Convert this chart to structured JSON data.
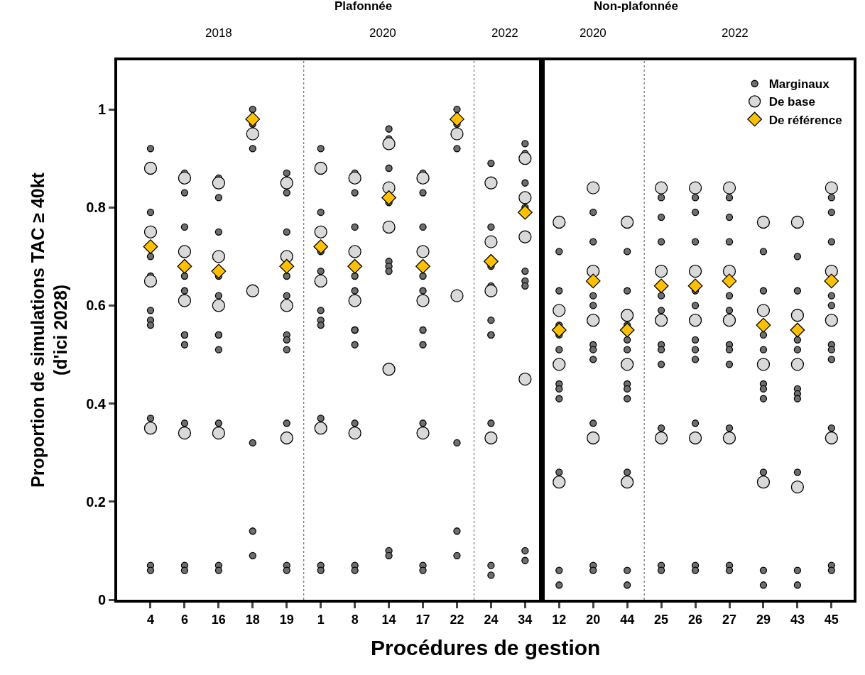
{
  "chart_data": {
    "type": "scatter",
    "xlabel": "Procédures de gestion",
    "ylabel": "Proportion de simulations TAC ≥ 40kt\n(d'ici 2028)",
    "categories": [
      "4",
      "6",
      "16",
      "18",
      "19",
      "1",
      "8",
      "14",
      "17",
      "22",
      "24",
      "34",
      "12",
      "20",
      "44",
      "25",
      "26",
      "27",
      "29",
      "43",
      "45"
    ],
    "ylim": [
      0,
      1.1
    ],
    "yticks": [
      0,
      0.2,
      0.4,
      0.6,
      0.8,
      1
    ],
    "grid": false,
    "legend": "top right",
    "annotations": [
      "Plafonnée",
      "Non-plafonnée",
      "2018",
      "2020",
      "2022",
      "2020",
      "2022"
    ],
    "series": [
      {
        "name": "Marginaux",
        "color": "#6e6e6e",
        "marker": "circle",
        "x": [
          "4",
          "4",
          "4",
          "4",
          "4",
          "4",
          "4",
          "4",
          "4",
          "4",
          "6",
          "6",
          "6",
          "6",
          "6",
          "6",
          "6",
          "6",
          "6",
          "6",
          "6",
          "16",
          "16",
          "16",
          "16",
          "16",
          "16",
          "16",
          "16",
          "16",
          "16",
          "16",
          "18",
          "18",
          "18",
          "18",
          "18",
          "18",
          "19",
          "19",
          "19",
          "19",
          "19",
          "19",
          "19",
          "19",
          "19",
          "19",
          "19",
          "1",
          "1",
          "1",
          "1",
          "1",
          "1",
          "1",
          "1",
          "1",
          "1",
          "8",
          "8",
          "8",
          "8",
          "8",
          "8",
          "8",
          "8",
          "8",
          "8",
          "8",
          "14",
          "14",
          "14",
          "14",
          "14",
          "14",
          "14",
          "14",
          "14",
          "17",
          "17",
          "17",
          "17",
          "17",
          "17",
          "17",
          "17",
          "17",
          "17",
          "22",
          "22",
          "22",
          "22",
          "22",
          "22",
          "24",
          "24",
          "24",
          "24",
          "24",
          "24",
          "24",
          "24",
          "24",
          "24",
          "34",
          "34",
          "34",
          "34",
          "34",
          "34",
          "34",
          "34",
          "34",
          "12",
          "12",
          "12",
          "12",
          "12",
          "12",
          "12",
          "12",
          "12",
          "12",
          "12",
          "20",
          "20",
          "20",
          "20",
          "20",
          "20",
          "20",
          "20",
          "20",
          "20",
          "44",
          "44",
          "44",
          "44",
          "44",
          "44",
          "44",
          "44",
          "44",
          "44",
          "44",
          "25",
          "25",
          "25",
          "25",
          "25",
          "25",
          "25",
          "25",
          "25",
          "25",
          "25",
          "26",
          "26",
          "26",
          "26",
          "26",
          "26",
          "26",
          "26",
          "26",
          "26",
          "26",
          "27",
          "27",
          "27",
          "27",
          "27",
          "27",
          "27",
          "27",
          "27",
          "27",
          "27",
          "29",
          "29",
          "29",
          "29",
          "29",
          "29",
          "29",
          "29",
          "29",
          "29",
          "43",
          "43",
          "43",
          "43",
          "43",
          "43",
          "43",
          "43",
          "43",
          "43",
          "45",
          "45",
          "45",
          "45",
          "45",
          "45",
          "45",
          "45",
          "45",
          "45",
          "45"
        ],
        "values": [
          0.92,
          0.79,
          0.7,
          0.66,
          0.59,
          0.57,
          0.56,
          0.37,
          0.07,
          0.06,
          0.87,
          0.83,
          0.76,
          0.66,
          0.63,
          0.54,
          0.54,
          0.52,
          0.36,
          0.07,
          0.06,
          0.86,
          0.82,
          0.75,
          0.66,
          0.62,
          0.54,
          0.54,
          0.51,
          0.36,
          0.07,
          0.06,
          1.0,
          0.97,
          0.92,
          0.32,
          0.14,
          0.09,
          0.87,
          0.83,
          0.75,
          0.66,
          0.62,
          0.54,
          0.53,
          0.51,
          0.36,
          0.07,
          0.06,
          0.92,
          0.79,
          0.71,
          0.67,
          0.59,
          0.57,
          0.56,
          0.37,
          0.07,
          0.06,
          0.87,
          0.83,
          0.76,
          0.66,
          0.63,
          0.55,
          0.55,
          0.52,
          0.36,
          0.07,
          0.06,
          0.96,
          0.94,
          0.88,
          0.81,
          0.69,
          0.68,
          0.67,
          0.1,
          0.09,
          0.87,
          0.83,
          0.76,
          0.66,
          0.63,
          0.55,
          0.52,
          0.36,
          0.07,
          0.06,
          1.0,
          0.97,
          0.92,
          0.32,
          0.14,
          0.09,
          0.89,
          0.76,
          0.68,
          0.64,
          0.57,
          0.54,
          0.54,
          0.36,
          0.07,
          0.05,
          0.93,
          0.91,
          0.85,
          0.8,
          0.67,
          0.65,
          0.64,
          0.1,
          0.08,
          0.71,
          0.63,
          0.56,
          0.54,
          0.51,
          0.44,
          0.43,
          0.41,
          0.26,
          0.06,
          0.03,
          0.79,
          0.73,
          0.62,
          0.6,
          0.52,
          0.51,
          0.49,
          0.36,
          0.07,
          0.06,
          0.71,
          0.63,
          0.56,
          0.53,
          0.51,
          0.44,
          0.43,
          0.41,
          0.26,
          0.06,
          0.03,
          0.82,
          0.78,
          0.73,
          0.62,
          0.59,
          0.52,
          0.51,
          0.48,
          0.35,
          0.07,
          0.06,
          0.82,
          0.79,
          0.73,
          0.63,
          0.6,
          0.53,
          0.51,
          0.49,
          0.36,
          0.07,
          0.06,
          0.82,
          0.78,
          0.73,
          0.62,
          0.59,
          0.52,
          0.51,
          0.48,
          0.35,
          0.07,
          0.06,
          0.71,
          0.63,
          0.54,
          0.51,
          0.44,
          0.43,
          0.41,
          0.26,
          0.06,
          0.03,
          0.7,
          0.63,
          0.53,
          0.51,
          0.43,
          0.42,
          0.41,
          0.26,
          0.06,
          0.03,
          0.82,
          0.79,
          0.73,
          0.62,
          0.6,
          0.52,
          0.51,
          0.49,
          0.35,
          0.07,
          0.06
        ]
      },
      {
        "name": "De base",
        "color": "#d9d9d9",
        "marker": "circle",
        "x": [
          "4",
          "4",
          "4",
          "4",
          "6",
          "6",
          "6",
          "6",
          "16",
          "16",
          "16",
          "16",
          "18",
          "18",
          "19",
          "19",
          "19",
          "19",
          "1",
          "1",
          "1",
          "1",
          "8",
          "8",
          "8",
          "8",
          "14",
          "14",
          "14",
          "14",
          "17",
          "17",
          "17",
          "17",
          "22",
          "22",
          "24",
          "24",
          "24",
          "24",
          "34",
          "34",
          "34",
          "34",
          "12",
          "12",
          "12",
          "12",
          "20",
          "20",
          "20",
          "20",
          "44",
          "44",
          "44",
          "44",
          "25",
          "25",
          "25",
          "25",
          "26",
          "26",
          "26",
          "26",
          "27",
          "27",
          "27",
          "27",
          "29",
          "29",
          "29",
          "29",
          "43",
          "43",
          "43",
          "43",
          "45",
          "45",
          "45",
          "45"
        ],
        "values": [
          0.88,
          0.75,
          0.65,
          0.35,
          0.86,
          0.71,
          0.61,
          0.34,
          0.85,
          0.7,
          0.6,
          0.34,
          0.95,
          0.63,
          0.85,
          0.7,
          0.6,
          0.33,
          0.88,
          0.75,
          0.65,
          0.35,
          0.86,
          0.71,
          0.61,
          0.34,
          0.93,
          0.84,
          0.76,
          0.47,
          0.86,
          0.71,
          0.61,
          0.34,
          0.95,
          0.62,
          0.85,
          0.73,
          0.63,
          0.33,
          0.9,
          0.82,
          0.74,
          0.45,
          0.77,
          0.59,
          0.48,
          0.24,
          0.84,
          0.67,
          0.57,
          0.33,
          0.77,
          0.58,
          0.48,
          0.24,
          0.84,
          0.67,
          0.57,
          0.33,
          0.84,
          0.67,
          0.57,
          0.33,
          0.84,
          0.67,
          0.57,
          0.33,
          0.77,
          0.59,
          0.48,
          0.24,
          0.77,
          0.58,
          0.48,
          0.23,
          0.84,
          0.67,
          0.57,
          0.33
        ]
      },
      {
        "name": "De référence",
        "color": "#ffc000",
        "marker": "diamond",
        "x": [
          "4",
          "6",
          "16",
          "18",
          "19",
          "1",
          "8",
          "14",
          "17",
          "22",
          "24",
          "34",
          "12",
          "20",
          "44",
          "25",
          "26",
          "27",
          "29",
          "43",
          "45"
        ],
        "values": [
          0.72,
          0.68,
          0.67,
          0.98,
          0.68,
          0.72,
          0.68,
          0.82,
          0.68,
          0.98,
          0.69,
          0.79,
          0.55,
          0.65,
          0.55,
          0.64,
          0.64,
          0.65,
          0.56,
          0.55,
          0.65
        ]
      }
    ]
  }
}
